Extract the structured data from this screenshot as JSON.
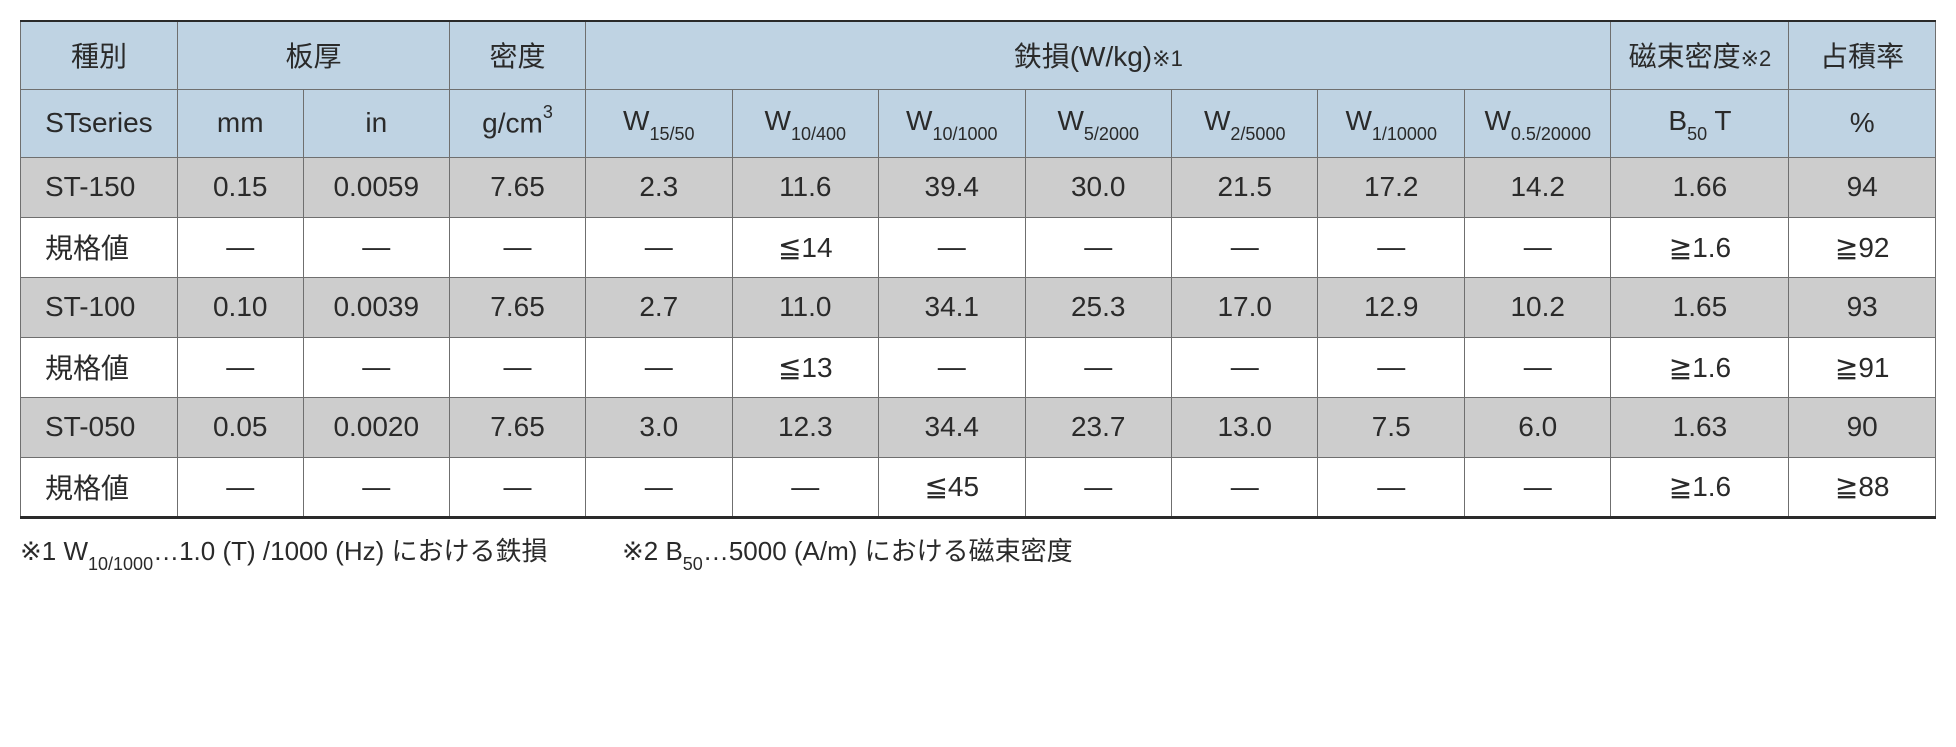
{
  "table": {
    "header_row1": {
      "type": "種別",
      "thickness": "板厚",
      "density": "密度",
      "ironloss": "鉄損(W/kg)",
      "ironloss_mark": "※1",
      "flux": "磁束密度",
      "flux_mark": "※2",
      "fill": "占積率"
    },
    "header_row2": {
      "type": "STseries",
      "mm": "mm",
      "in": "in",
      "density": "g/cm",
      "density_sup": "3",
      "w": [
        {
          "main": "W",
          "sub": "15/50"
        },
        {
          "main": "W",
          "sub": "10/400"
        },
        {
          "main": "W",
          "sub": "10/1000"
        },
        {
          "main": "W",
          "sub": "5/2000"
        },
        {
          "main": "W",
          "sub": "2/5000"
        },
        {
          "main": "W",
          "sub": "1/10000"
        },
        {
          "main": "W",
          "sub": "0.5/20000"
        }
      ],
      "flux_main": "B",
      "flux_sub": "50",
      "flux_unit": "  T",
      "fill": "%"
    },
    "rows": [
      {
        "kind": "data",
        "label": "ST-150",
        "mm": "0.15",
        "in": "0.0059",
        "dens": "7.65",
        "w": [
          "2.3",
          "11.6",
          "39.4",
          "30.0",
          "21.5",
          "17.2",
          "14.2"
        ],
        "flux": "1.66",
        "fill": "94"
      },
      {
        "kind": "spec",
        "label": "規格値",
        "mm": "—",
        "in": "—",
        "dens": "—",
        "w": [
          "—",
          "≦14",
          "—",
          "—",
          "—",
          "—",
          "—"
        ],
        "flux": "≧1.6",
        "fill": "≧92"
      },
      {
        "kind": "data",
        "label": "ST-100",
        "mm": "0.10",
        "in": "0.0039",
        "dens": "7.65",
        "w": [
          "2.7",
          "11.0",
          "34.1",
          "25.3",
          "17.0",
          "12.9",
          "10.2"
        ],
        "flux": "1.65",
        "fill": "93"
      },
      {
        "kind": "spec",
        "label": "規格値",
        "mm": "—",
        "in": "—",
        "dens": "—",
        "w": [
          "—",
          "≦13",
          "—",
          "—",
          "—",
          "—",
          "—"
        ],
        "flux": "≧1.6",
        "fill": "≧91"
      },
      {
        "kind": "data",
        "label": "ST-050",
        "mm": "0.05",
        "in": "0.0020",
        "dens": "7.65",
        "w": [
          "3.0",
          "12.3",
          "34.4",
          "23.7",
          "13.0",
          "7.5",
          "6.0"
        ],
        "flux": "1.63",
        "fill": "90"
      },
      {
        "kind": "spec",
        "label": "規格値",
        "mm": "—",
        "in": "—",
        "dens": "—",
        "w": [
          "—",
          "—",
          "≦45",
          "—",
          "—",
          "—",
          "—"
        ],
        "flux": "≧1.6",
        "fill": "≧88"
      }
    ],
    "colors": {
      "header_bg": "#bfd3e3",
      "data_bg": "#cdcdcd",
      "spec_bg": "#ffffff",
      "border": "#6f6f6f",
      "outer_border": "#2a2a2a",
      "text": "#2a2a2a"
    },
    "font_sizes": {
      "cell": 28,
      "sub": 18,
      "footnote": 26
    }
  },
  "footnotes": {
    "n1_pre": "※1 W",
    "n1_sub": "10/1000",
    "n1_post": "…1.0 (T) /1000 (Hz) における鉄損",
    "n2_pre": "※2 B",
    "n2_sub": "50",
    "n2_post": "…5000 (A/m) における磁束密度"
  }
}
